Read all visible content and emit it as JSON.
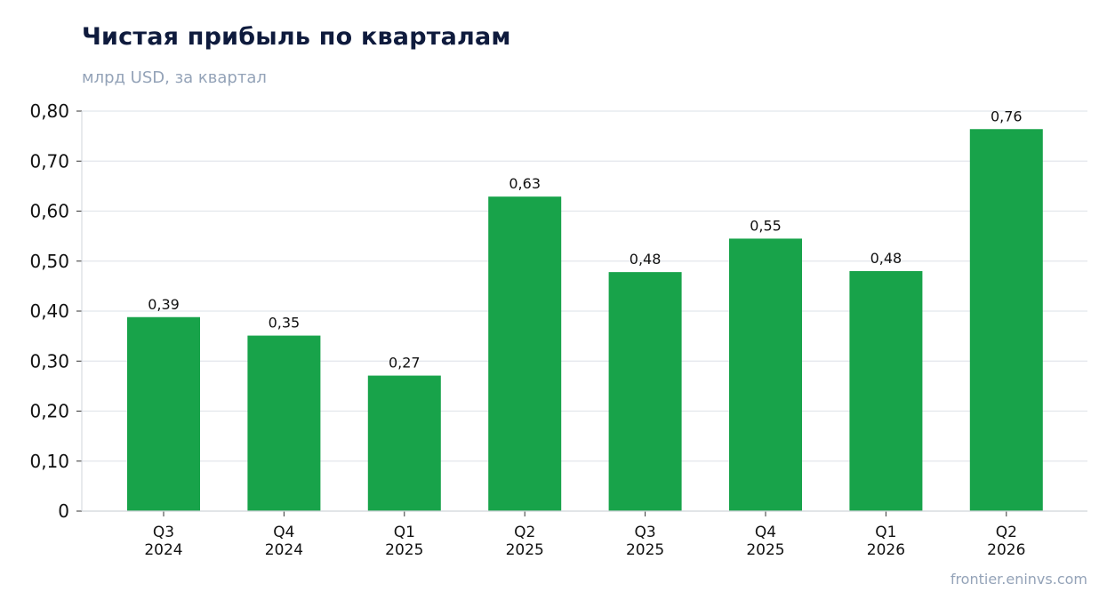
{
  "title": "Чистая прибыль по кварталам",
  "subtitle": "млрд USD, за квартал",
  "source": "frontier.eninvs.com",
  "colors": {
    "bar": "#18a34a",
    "grid": "#e2e6ec",
    "axis": "#d1d5db",
    "tick_text": "#111111",
    "label_text": "#111111"
  },
  "chart_data": {
    "type": "bar",
    "categories": [
      [
        "Q3",
        "2024"
      ],
      [
        "Q4",
        "2024"
      ],
      [
        "Q1",
        "2025"
      ],
      [
        "Q2",
        "2025"
      ],
      [
        "Q3",
        "2025"
      ],
      [
        "Q4",
        "2025"
      ],
      [
        "Q1",
        "2026"
      ],
      [
        "Q2",
        "2026"
      ]
    ],
    "values": [
      0.388,
      0.351,
      0.271,
      0.629,
      0.478,
      0.545,
      0.48,
      0.764
    ],
    "value_labels": [
      "0,39",
      "0,35",
      "0,27",
      "0,63",
      "0,48",
      "0,55",
      "0,48",
      "0,76"
    ],
    "y_ticks": [
      0,
      0.1,
      0.2,
      0.3,
      0.4,
      0.5,
      0.6,
      0.7,
      0.8
    ],
    "y_tick_labels": [
      "0",
      "0,10",
      "0,20",
      "0,30",
      "0,40",
      "0,50",
      "0,60",
      "0,70",
      "0,80"
    ],
    "ylim": [
      0,
      0.8
    ],
    "grid": true,
    "legend": "none"
  }
}
